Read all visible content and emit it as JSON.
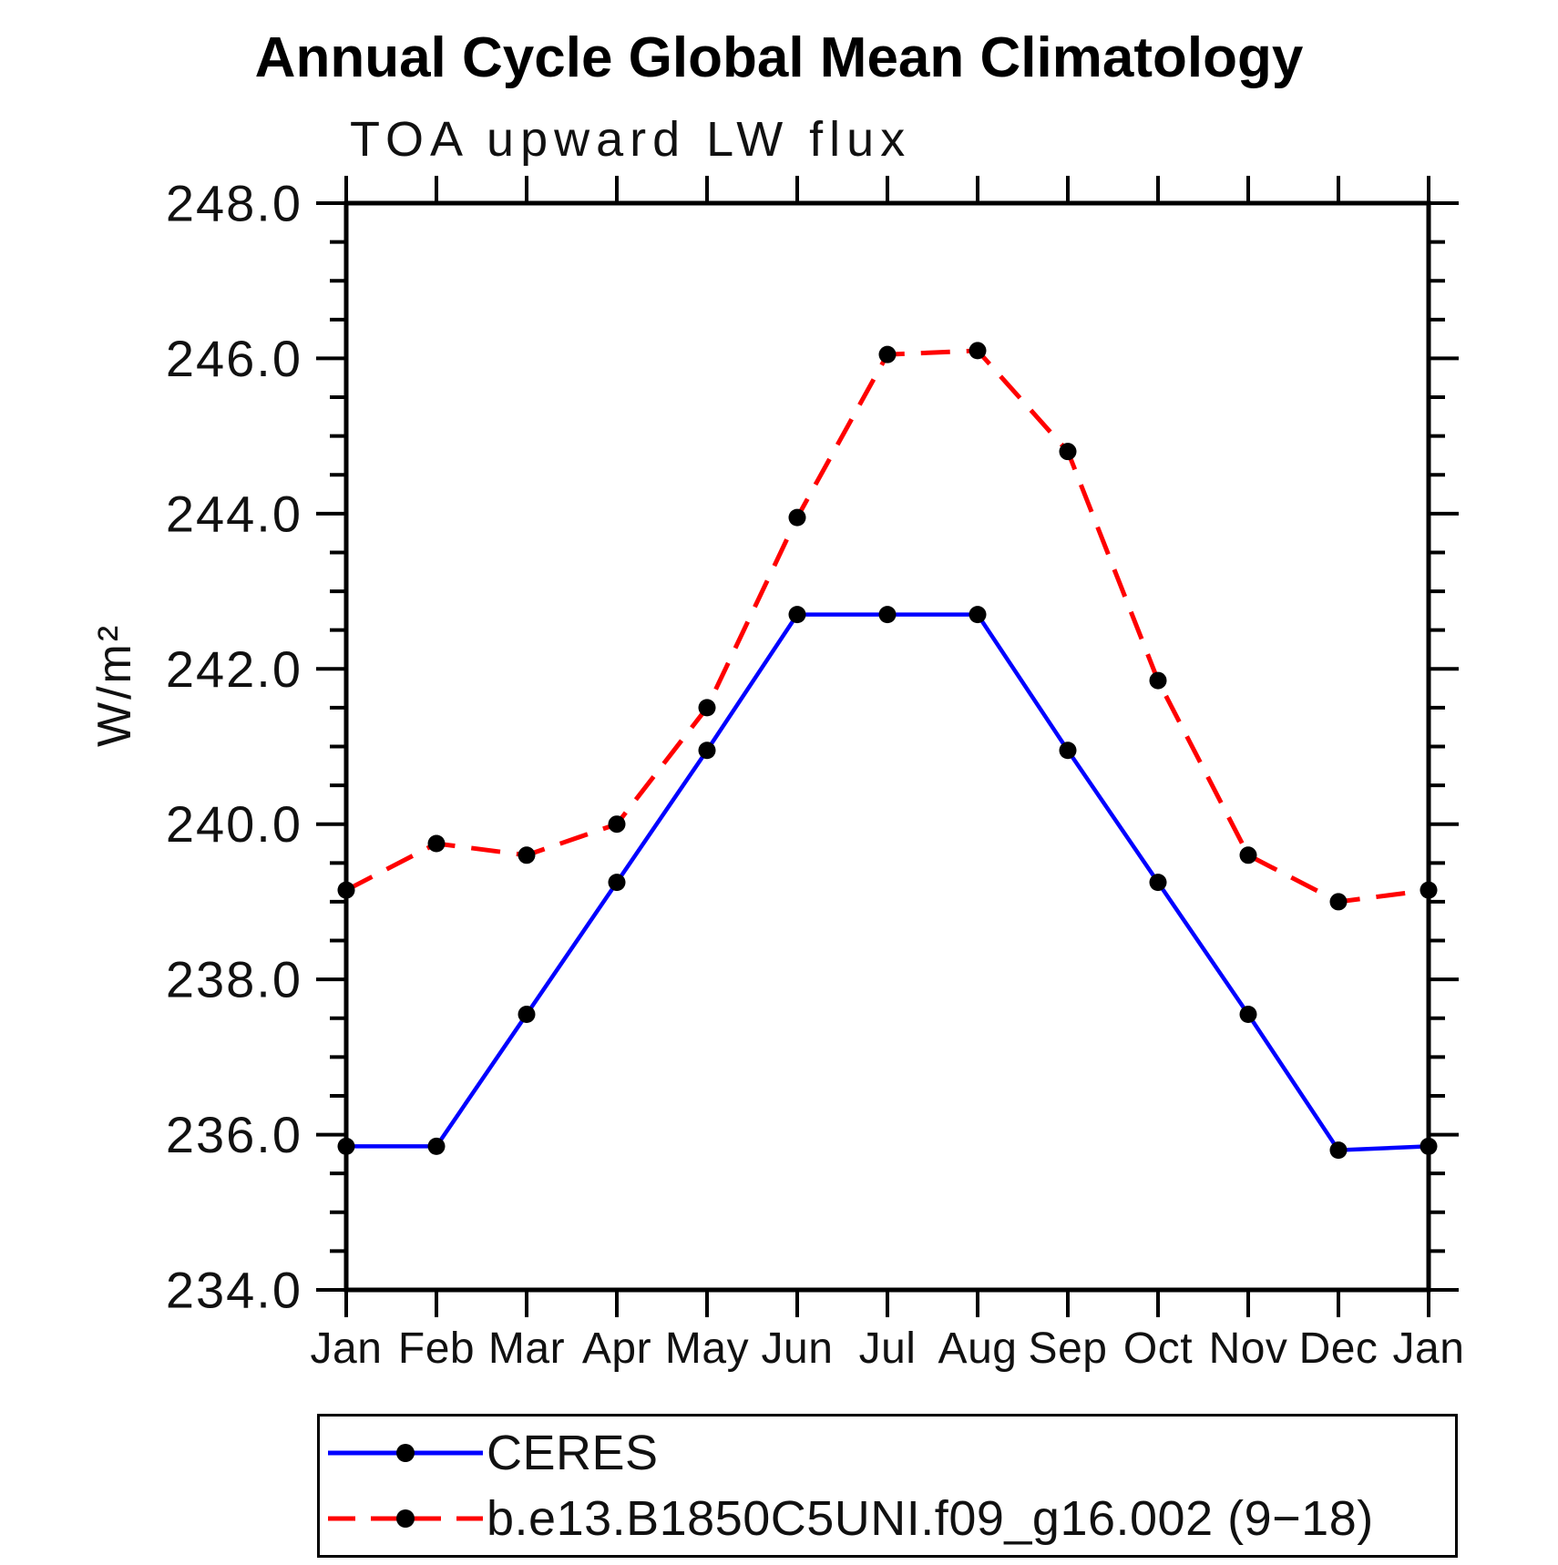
{
  "page": {
    "background": "#ffffff"
  },
  "chart_data": {
    "type": "line",
    "title": "Annual Cycle Global Mean Climatology",
    "subtitle": "TOA upward LW flux",
    "ylabel": "W/m²",
    "categories": [
      "Jan",
      "Feb",
      "Mar",
      "Apr",
      "May",
      "Jun",
      "Jul",
      "Aug",
      "Sep",
      "Oct",
      "Nov",
      "Dec",
      "Jan"
    ],
    "y_tick_labels": [
      "234.0",
      "236.0",
      "238.0",
      "240.0",
      "242.0",
      "244.0",
      "246.0",
      "248.0"
    ],
    "ylim": [
      234.0,
      248.0
    ],
    "y_major_step": 2.0,
    "y_minor_step": 0.5,
    "grid": false,
    "legend_position": "bottom",
    "axis_color": "#000000",
    "marker_color": "#000000",
    "series": [
      {
        "name": "CERES",
        "color": "#0000ff",
        "line_style": "solid",
        "marker": "filled-circle",
        "values": [
          235.85,
          235.85,
          237.55,
          239.25,
          240.95,
          242.7,
          242.7,
          242.7,
          240.95,
          239.25,
          237.55,
          235.8,
          235.85
        ]
      },
      {
        "name": "b.e13.B1850C5UNI.f09_g16.002 (9−18)",
        "color": "#ff0000",
        "line_style": "dashed",
        "marker": "filled-circle",
        "values": [
          239.15,
          239.75,
          239.6,
          240.0,
          241.5,
          243.95,
          246.05,
          246.1,
          244.8,
          241.85,
          239.6,
          239.0,
          239.15
        ]
      }
    ]
  }
}
